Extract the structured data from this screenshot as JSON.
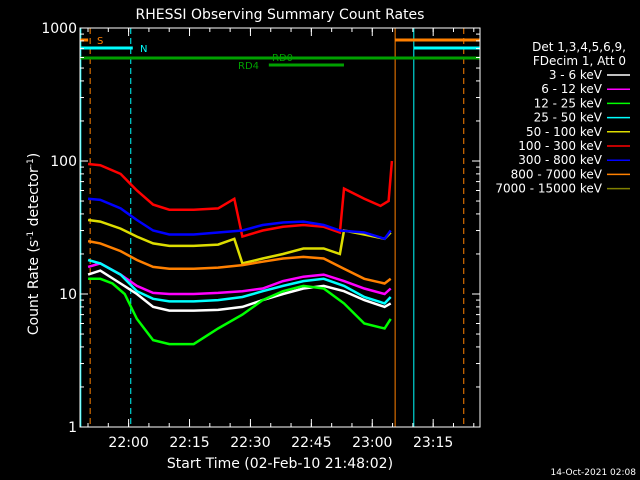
{
  "chart_data": {
    "type": "line",
    "title": "RHESSI Observing Summary Count Rates",
    "xlabel": "Start Time (02-Feb-10 21:48:02)",
    "ylabel": "Count Rate (s^-1 detector^-1)",
    "ylabel_parts": {
      "main": "Count Rate (s",
      "sup1": "-1",
      "mid": " detector",
      "sup2": "-1",
      "end": ")"
    },
    "y_scale": "log",
    "ylim": [
      1,
      1000
    ],
    "xlim": [
      "21:48:02",
      "23:26:30"
    ],
    "xlim_min": [
      0,
      98.5
    ],
    "x_ticks": [
      {
        "label": "22:00",
        "min": 11.97
      },
      {
        "label": "22:15",
        "min": 26.97
      },
      {
        "label": "22:30",
        "min": 41.97
      },
      {
        "label": "22:45",
        "min": 56.97
      },
      {
        "label": "23:00",
        "min": 71.97
      },
      {
        "label": "23:15",
        "min": 86.97
      }
    ],
    "y_ticks": [
      {
        "label": "1",
        "value": 1
      },
      {
        "label": "10",
        "value": 10
      },
      {
        "label": "100",
        "value": 100
      },
      {
        "label": "1000",
        "value": 1000
      }
    ],
    "legend_header": [
      "Det 1,3,4,5,6,9,",
      "FDecim 1, Att 0"
    ],
    "legend_position": "right",
    "series": [
      {
        "name": "3 - 6 keV",
        "color": "#ffffff",
        "points": [
          [
            2,
            14
          ],
          [
            5,
            15
          ],
          [
            10,
            12
          ],
          [
            14,
            10
          ],
          [
            18,
            8
          ],
          [
            22,
            7.5
          ],
          [
            28,
            7.5
          ],
          [
            34,
            7.6
          ],
          [
            40,
            8
          ],
          [
            45,
            9
          ],
          [
            50,
            10
          ],
          [
            55,
            11
          ],
          [
            60,
            11.5
          ],
          [
            65,
            10.5
          ],
          [
            70,
            9
          ],
          [
            75,
            8
          ],
          [
            76.5,
            8.5
          ]
        ]
      },
      {
        "name": "6 - 12 keV",
        "color": "#ff00ff",
        "points": [
          [
            2,
            16
          ],
          [
            5,
            17
          ],
          [
            10,
            14
          ],
          [
            14,
            11.5
          ],
          [
            18,
            10.2
          ],
          [
            22,
            10
          ],
          [
            28,
            10
          ],
          [
            34,
            10.2
          ],
          [
            40,
            10.5
          ],
          [
            45,
            11
          ],
          [
            50,
            12.5
          ],
          [
            55,
            13.5
          ],
          [
            60,
            14
          ],
          [
            65,
            12.5
          ],
          [
            70,
            11
          ],
          [
            75,
            10
          ],
          [
            76.5,
            11
          ]
        ]
      },
      {
        "name": "12 - 25 keV",
        "color": "#00ff00",
        "points": [
          [
            2,
            13
          ],
          [
            5,
            13
          ],
          [
            8,
            12
          ],
          [
            11,
            10
          ],
          [
            14,
            6.5
          ],
          [
            18,
            4.5
          ],
          [
            22,
            4.2
          ],
          [
            28,
            4.2
          ],
          [
            34,
            5.5
          ],
          [
            40,
            7
          ],
          [
            45,
            9
          ],
          [
            50,
            10.5
          ],
          [
            55,
            11.5
          ],
          [
            60,
            11
          ],
          [
            65,
            8.5
          ],
          [
            70,
            6
          ],
          [
            75,
            5.5
          ],
          [
            76.5,
            6.5
          ]
        ]
      },
      {
        "name": "25 - 50 keV",
        "color": "#00ffff",
        "points": [
          [
            2,
            18
          ],
          [
            5,
            17
          ],
          [
            10,
            14
          ],
          [
            14,
            10.5
          ],
          [
            18,
            9.2
          ],
          [
            22,
            8.8
          ],
          [
            28,
            8.8
          ],
          [
            34,
            9
          ],
          [
            40,
            9.5
          ],
          [
            45,
            10.5
          ],
          [
            50,
            11.5
          ],
          [
            55,
            12.5
          ],
          [
            60,
            13
          ],
          [
            65,
            11.5
          ],
          [
            70,
            9.5
          ],
          [
            75,
            8.5
          ],
          [
            76.5,
            9.5
          ]
        ]
      },
      {
        "name": "50 - 100 keV",
        "color": "#dddd00",
        "points": [
          [
            2,
            36
          ],
          [
            5,
            35
          ],
          [
            10,
            31
          ],
          [
            14,
            27
          ],
          [
            18,
            24
          ],
          [
            22,
            23
          ],
          [
            28,
            23
          ],
          [
            34,
            23.5
          ],
          [
            38,
            26
          ],
          [
            40,
            17
          ],
          [
            45,
            18.5
          ],
          [
            50,
            20
          ],
          [
            55,
            22
          ],
          [
            60,
            22
          ],
          [
            64,
            20
          ],
          [
            65,
            30
          ],
          [
            70,
            28
          ],
          [
            75,
            26
          ],
          [
            76.5,
            29
          ]
        ]
      },
      {
        "name": "100 - 300 keV",
        "color": "#ff0000",
        "points": [
          [
            2,
            95
          ],
          [
            5,
            93
          ],
          [
            10,
            80
          ],
          [
            14,
            60
          ],
          [
            18,
            47
          ],
          [
            22,
            43
          ],
          [
            28,
            43
          ],
          [
            34,
            44
          ],
          [
            38,
            52
          ],
          [
            40,
            27
          ],
          [
            45,
            30
          ],
          [
            50,
            32
          ],
          [
            55,
            33
          ],
          [
            60,
            32
          ],
          [
            64,
            29
          ],
          [
            65,
            62
          ],
          [
            70,
            52
          ],
          [
            74,
            46
          ],
          [
            76,
            50
          ],
          [
            76.8,
            100
          ]
        ]
      },
      {
        "name": "300 - 800 keV",
        "color": "#0000ff",
        "points": [
          [
            2,
            52
          ],
          [
            5,
            51
          ],
          [
            10,
            44
          ],
          [
            14,
            36
          ],
          [
            18,
            30
          ],
          [
            22,
            28
          ],
          [
            28,
            28
          ],
          [
            34,
            29
          ],
          [
            40,
            30
          ],
          [
            45,
            33
          ],
          [
            50,
            34.5
          ],
          [
            55,
            35
          ],
          [
            60,
            33
          ],
          [
            64,
            30
          ],
          [
            70,
            29
          ],
          [
            75,
            26
          ],
          [
            76.5,
            30
          ]
        ]
      },
      {
        "name": "800 - 7000 keV",
        "color": "#ff8000",
        "points": [
          [
            2,
            25
          ],
          [
            5,
            24
          ],
          [
            10,
            21
          ],
          [
            14,
            18
          ],
          [
            18,
            16
          ],
          [
            22,
            15.5
          ],
          [
            28,
            15.5
          ],
          [
            34,
            15.8
          ],
          [
            40,
            16.5
          ],
          [
            45,
            17.5
          ],
          [
            50,
            18.5
          ],
          [
            55,
            19
          ],
          [
            60,
            18.5
          ],
          [
            65,
            15.5
          ],
          [
            70,
            13
          ],
          [
            75,
            12
          ],
          [
            76.5,
            13
          ]
        ]
      },
      {
        "name": "7000 - 15000 keV",
        "color": "#808000",
        "points": []
      }
    ],
    "attenuator_bars": [
      {
        "label": "S",
        "color": "#ff8000",
        "start_min": 0,
        "end_min": 2
      },
      {
        "label": "S",
        "color": "#ff8000",
        "start_min": 77.6,
        "end_min": 98.5
      },
      {
        "label": "N",
        "color": "#00ffff",
        "start_min": 0,
        "end_min": 13
      },
      {
        "label": "N",
        "color": "#00ffff",
        "start_min": 82.2,
        "end_min": 98.5
      },
      {
        "label": "RD0",
        "color": "#00a000",
        "start_min": 0,
        "end_min": 98.5
      },
      {
        "label": "RD4",
        "color": "#00a000",
        "start_min": 46.5,
        "end_min": 65
      }
    ],
    "vertical_markers": [
      {
        "min": 0.2,
        "color": "#00ffff",
        "style": "solid"
      },
      {
        "min": 2.5,
        "color": "#ff8000",
        "style": "dashed"
      },
      {
        "min": 12.5,
        "color": "#00ffff",
        "style": "dashed"
      },
      {
        "min": 77.6,
        "color": "#ff8000",
        "style": "solid"
      },
      {
        "min": 82.2,
        "color": "#00ffff",
        "style": "solid"
      },
      {
        "min": 94.5,
        "color": "#ff8000",
        "style": "dashed"
      }
    ]
  },
  "footer": {
    "timestamp": "14-Oct-2021 02:08"
  }
}
